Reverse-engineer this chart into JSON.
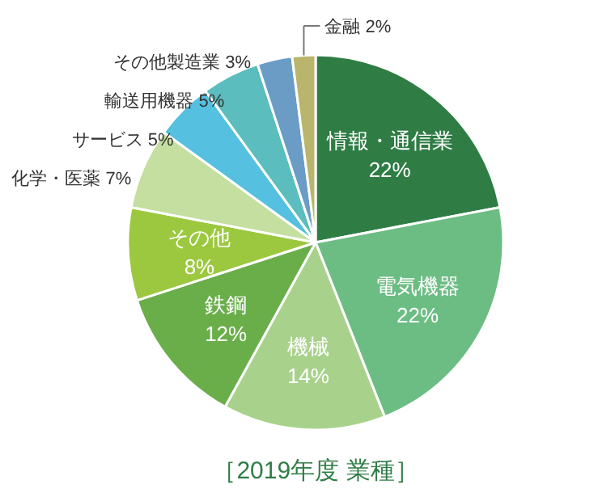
{
  "chart_data": {
    "type": "pie",
    "title": "［2019年度 業種］",
    "categories": [
      "情報・通信業",
      "電気機器",
      "機械",
      "鉄鋼",
      "その他",
      "化学・医薬",
      "サービス",
      "輸送用機器",
      "その他製造業",
      "金融"
    ],
    "values": [
      22,
      22,
      14,
      12,
      8,
      7,
      5,
      5,
      3,
      2
    ],
    "colors": [
      "#2f7d45",
      "#6cbd83",
      "#a8d28c",
      "#6aae4a",
      "#9cc83f",
      "#c4dfa0",
      "#55c0df",
      "#5bbdbd",
      "#6a9cc6",
      "#b9b56c"
    ],
    "value_labels": [
      "22%",
      "22%",
      "14%",
      "12%",
      "8%",
      "7%",
      "5%",
      "5%",
      "3%",
      "2%"
    ]
  }
}
